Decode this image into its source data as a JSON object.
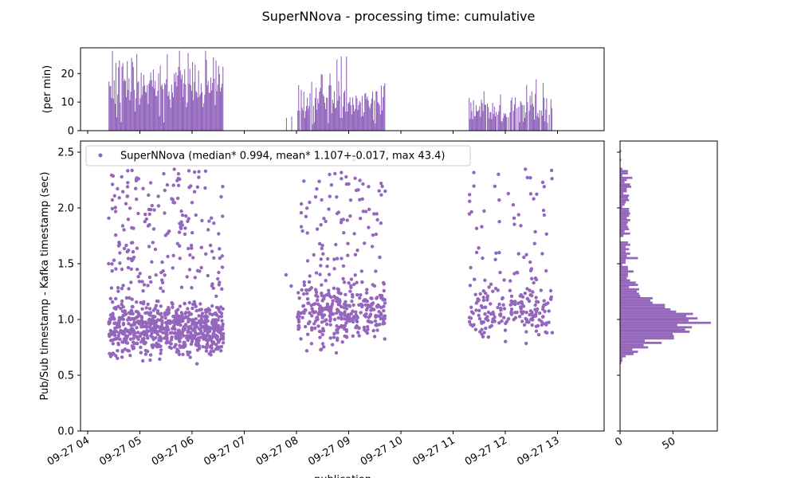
{
  "chart_data": {
    "title": "SuperNNova - processing time: cumulative",
    "main_scatter": {
      "type": "scatter",
      "ylabel": "Pub/Sub timestamp - Kafka timestamp (sec)",
      "xlabel": "publication",
      "xlim": [
        "09-27 04:00",
        "09-27 14:00"
      ],
      "ylim": [
        0,
        2.6
      ],
      "yticks": [
        0.0,
        0.5,
        1.0,
        1.5,
        2.0,
        2.5
      ],
      "xticks": [
        "09-27 04",
        "09-27 05",
        "09-27 06",
        "09-27 07",
        "09-27 08",
        "09-27 09",
        "09-27 10",
        "09-27 11",
        "09-27 12",
        "09-27 13"
      ],
      "legend_location": "upper-left",
      "series": [
        {
          "name": "SuperNNova (median* 0.994, mean* 1.107+-0.017, max 43.4)",
          "color": "#9467bd",
          "description_of_clusters_hours_since_04": [
            {
              "x_range": [
                0.4,
                2.6
              ],
              "y_center": 0.93,
              "y_spread": 0.22,
              "approx_points": 900
            },
            {
              "x_range": [
                4.0,
                5.7
              ],
              "y_center": 1.08,
              "y_spread": 0.22,
              "approx_points": 420
            },
            {
              "x_range": [
                7.3,
                8.9
              ],
              "y_center": 1.1,
              "y_spread": 0.22,
              "approx_points": 240
            }
          ]
        }
      ]
    },
    "top_histogram": {
      "type": "bar",
      "ylabel": "(per min)",
      "ylim": [
        0,
        29
      ],
      "yticks": [
        0,
        10,
        20
      ],
      "color": "#9467bd"
    },
    "right_histogram": {
      "type": "bar",
      "orientation": "horizontal",
      "xlim": [
        0,
        92
      ],
      "xticks": [
        0,
        50
      ],
      "color": "#9467bd"
    }
  }
}
